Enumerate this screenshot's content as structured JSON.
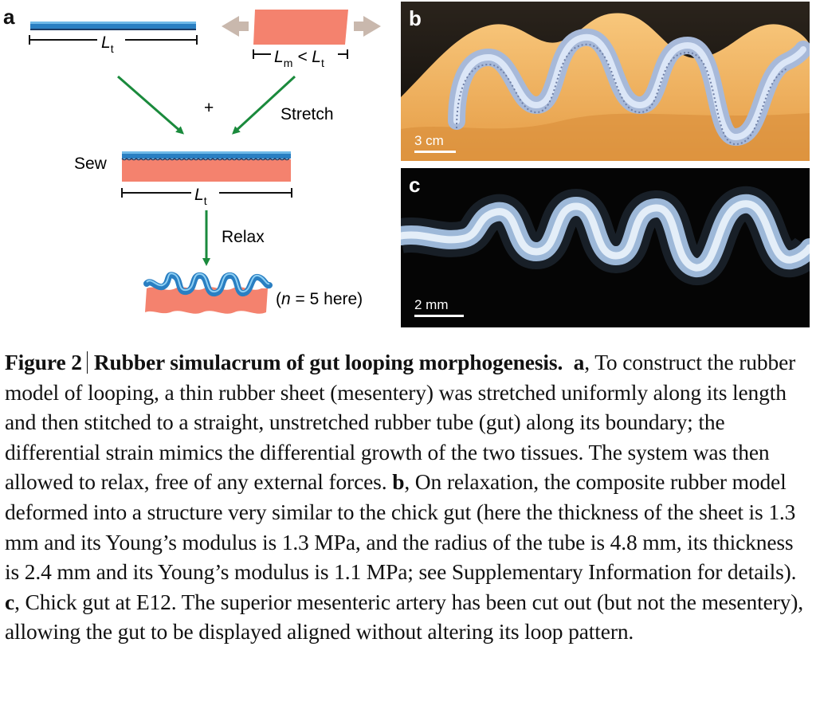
{
  "panel_a": {
    "letter": "a",
    "len_tube_main": "L",
    "len_tube_sub": "t",
    "len_mes_main1": "L",
    "len_mes_sub1": "m",
    "len_mes_mid": " < L",
    "len_mes_sub2": "t",
    "plus": "+",
    "stretch": "Stretch",
    "sew": "Sew",
    "len_sewn_main": "L",
    "len_sewn_sub": "t",
    "relax": "Relax",
    "n_note": "(n = 5 here)",
    "n_note_pre": "(",
    "n_note_italic": "n",
    "n_note_post": " = 5 here)"
  },
  "panel_b": {
    "letter": "b",
    "scale_label": "3 cm"
  },
  "panel_c": {
    "letter": "c",
    "scale_label": "2 mm"
  },
  "caption": {
    "figure_label": "Figure 2",
    "title": "Rubber simulacrum of gut looping morphogenesis.",
    "a_label": "a",
    "a_text": ", To construct the rubber model of looping, a thin rubber sheet (mesentery) was stretched uniformly along its length and then stitched to a straight, unstretched rubber tube (gut) along its boundary; the differential strain mimics the differential growth of the two tissues. The system was then allowed to relax, free of any external forces. ",
    "b_label": "b",
    "b_text": ", On relaxation, the composite rubber model deformed into a structure very similar to the chick gut (here the thickness of the sheet is 1.3 mm and its Young’s modulus is 1.3 MPa, and the radius of the tube is 4.8 mm, its thickness is 2.4 mm and its Young’s modulus is 1.1 MPa; see Supplementary Information for details). ",
    "c_label": "c",
    "c_text": ", Chick gut at E12. The superior mesenteric artery has been cut out (but not the mesentery), allowing the gut to be displayed aligned without altering its loop pattern."
  },
  "colors": {
    "tube_blue": "#2a7fc2",
    "sheet_salmon": "#f4826e",
    "arrow_green": "#1a8a3c",
    "arrow_grey": "#c9b8ad",
    "orange_background": "#f2b462",
    "photo_black": "#050505"
  }
}
